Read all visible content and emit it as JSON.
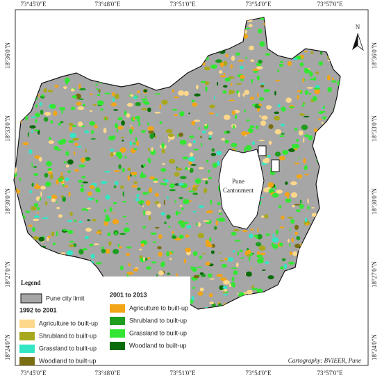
{
  "grid_labels": {
    "top": [
      "73°45'0\"E",
      "73°48'0\"E",
      "73°51'0\"E",
      "73°54'0\"E",
      "73°57'0\"E"
    ],
    "bottom": [
      "73°45'0\"E",
      "73°48'0\"E",
      "73°51'0\"E",
      "73°54'0\"E",
      "73°57'0\"E"
    ],
    "left": [
      "18°36'0\"N",
      "18°33'0\"N",
      "18°30'0\"N",
      "18°27'0\"N",
      "18°24'0\"N"
    ],
    "right": [
      "18°36'0\"N",
      "18°33'0\"N",
      "18°30'0\"N",
      "18°27'0\"N",
      "18°24'0\"N"
    ]
  },
  "north_arrow": "N",
  "map_labels": [
    "Pune",
    "Cantonment"
  ],
  "legend": {
    "title": "Legend",
    "city_limit": {
      "label": "Pune city limit",
      "color": "#a6a6a6"
    },
    "groups": [
      {
        "title": "1992 to 2001",
        "items": [
          {
            "label": "Agriculture to built-up",
            "color": "#fdd88a"
          },
          {
            "label": "Shrubland to built-up",
            "color": "#a8a81e"
          },
          {
            "label": "Grassland to built-up",
            "color": "#33e6c4"
          },
          {
            "label": "Woodland to built-up",
            "color": "#7a6e12"
          }
        ]
      },
      {
        "title": "2001 to 2013",
        "items": [
          {
            "label": "Agriculture to built-up",
            "color": "#f2a516"
          },
          {
            "label": "Shrubland to built-up",
            "color": "#1e9e1e"
          },
          {
            "label": "Grassland to built-up",
            "color": "#33e633"
          },
          {
            "label": "Woodland to built-up",
            "color": "#0a6b0a"
          }
        ]
      }
    ]
  },
  "credit": "Cartography: BVIEER, Pune"
}
